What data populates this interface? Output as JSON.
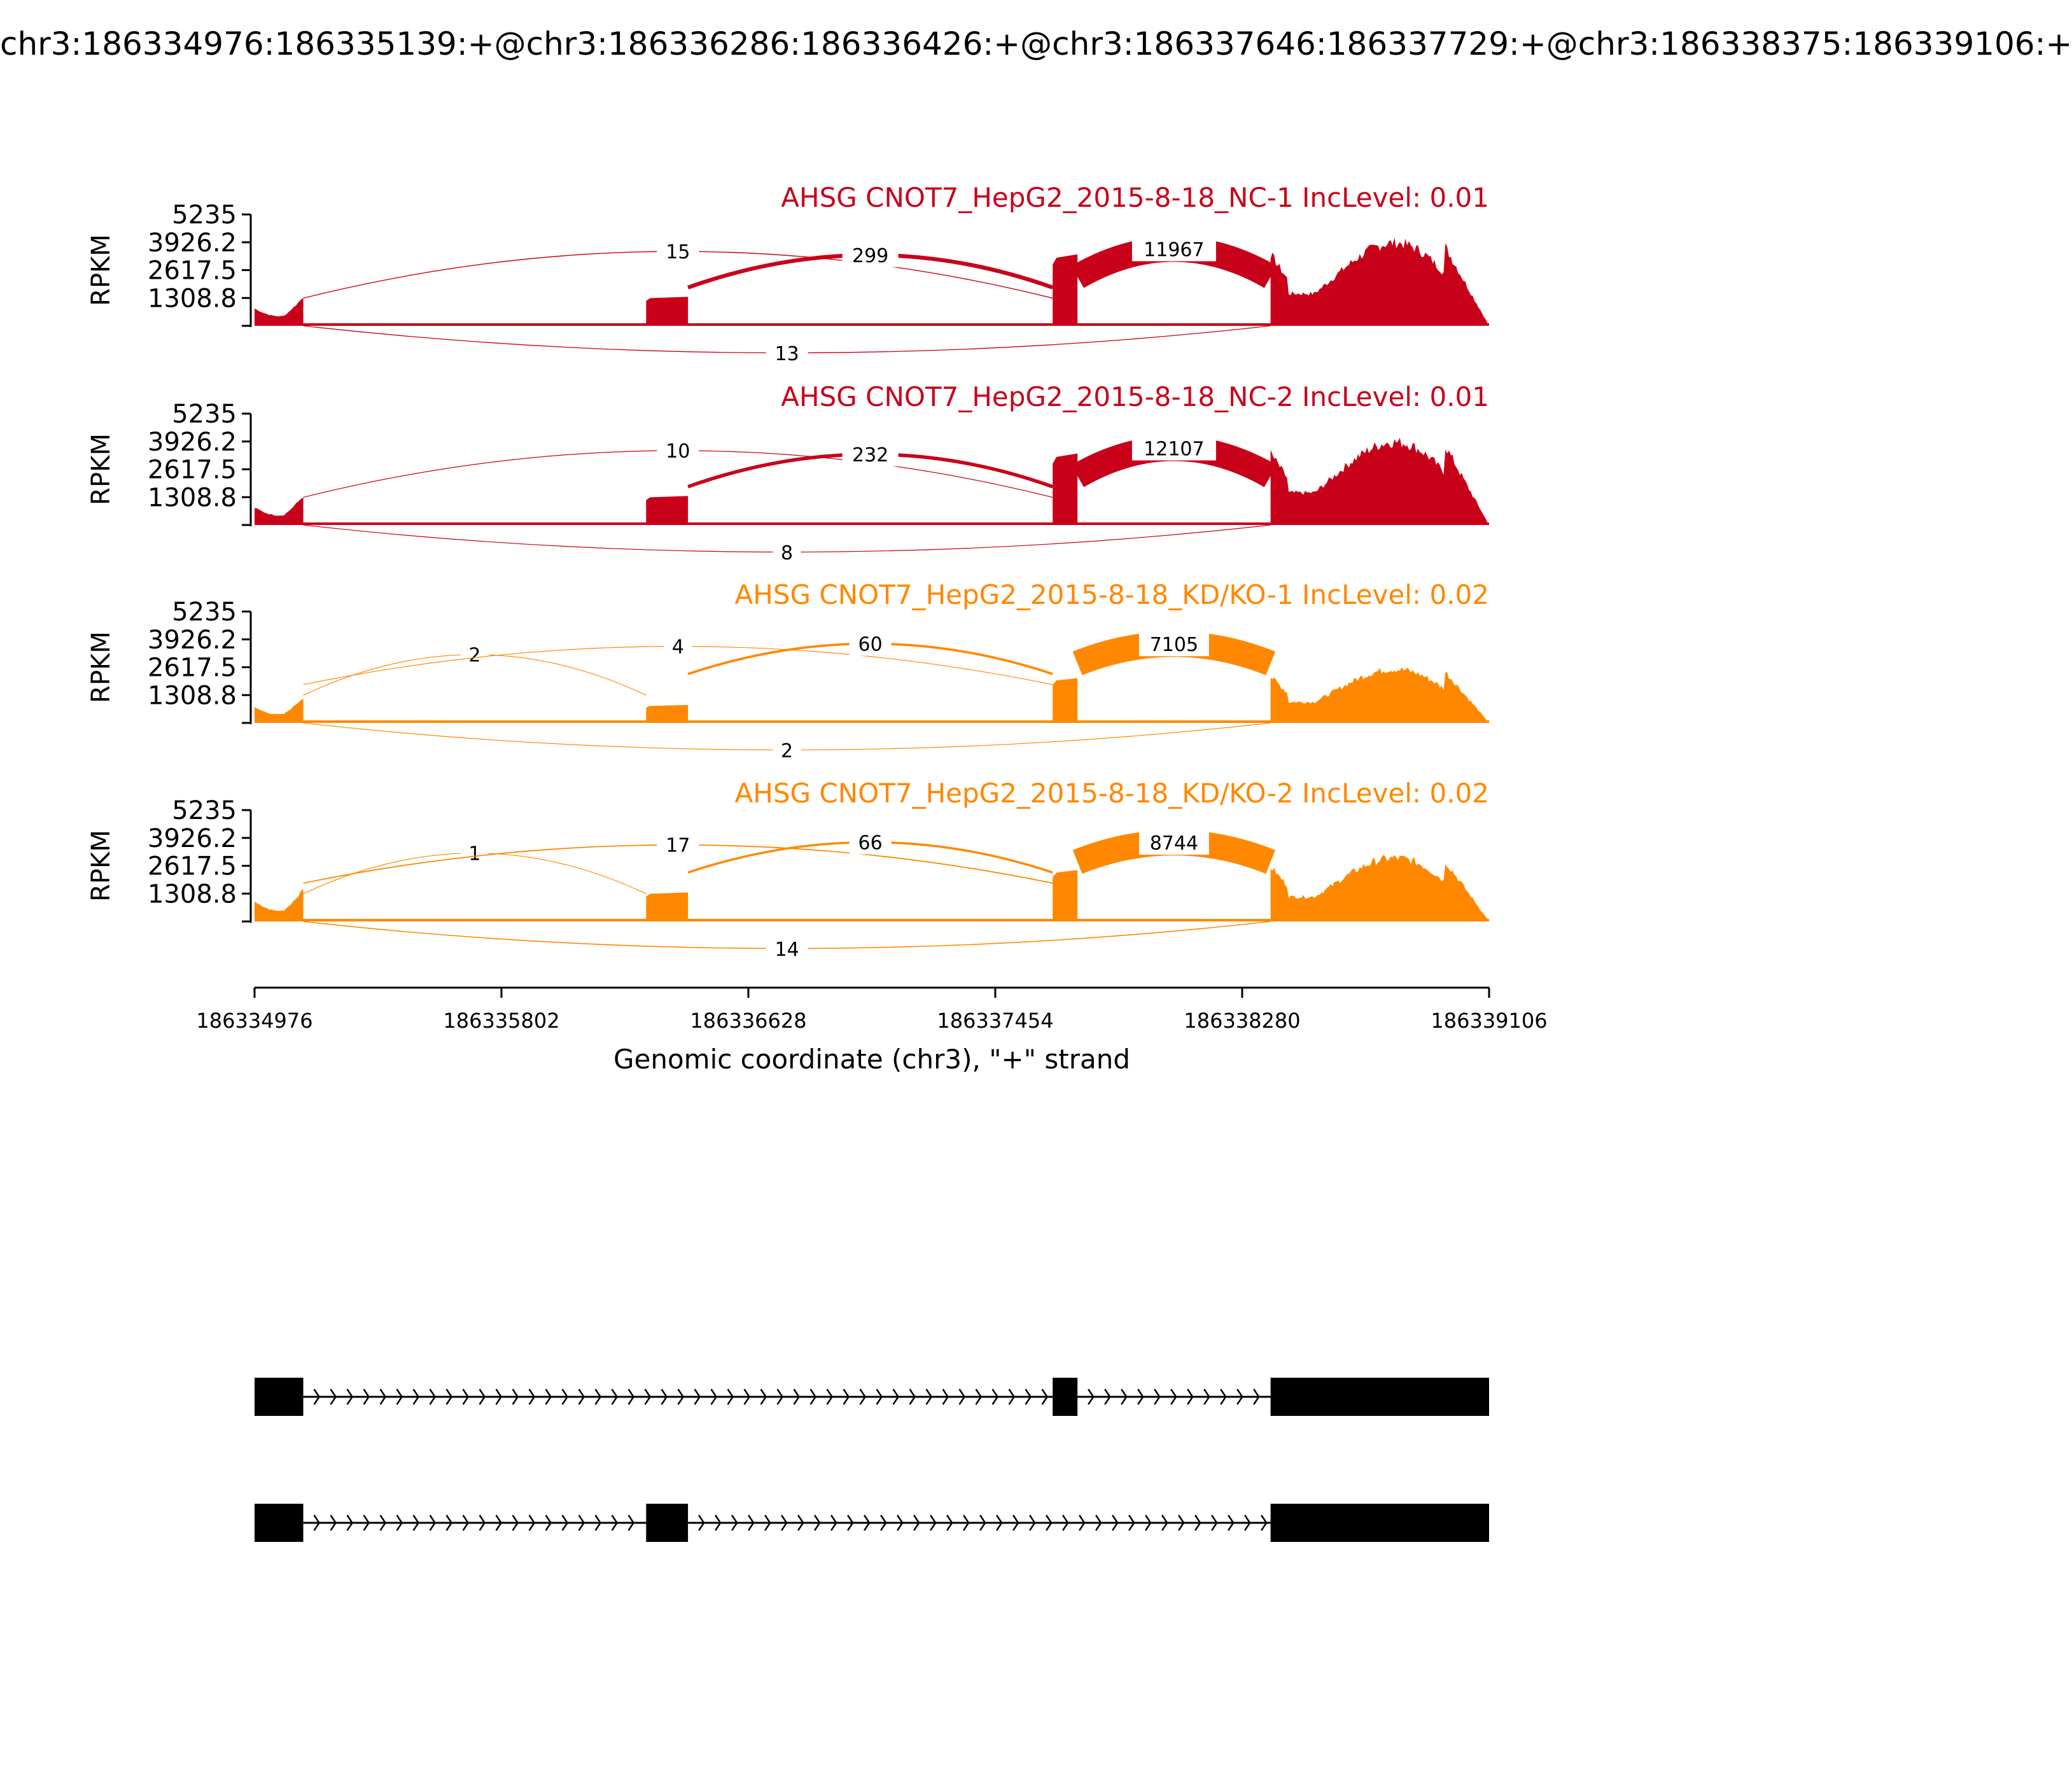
{
  "title": "chr3:186334976:186335139:+@chr3:186336286:186336426:+@chr3:186337646:186337729:+@chr3:186338375:186339106:+",
  "colors": {
    "nc": "#c9001a",
    "kd": "#ff8800",
    "axis": "#000000",
    "exon": "#000000"
  },
  "chart_data": {
    "type": "area",
    "ylabel": "RPKM",
    "xlabel": "Genomic coordinate (chr3), \"+\" strand",
    "xlim": [
      186334976,
      186339106
    ],
    "x_ticks": [
      "186334976",
      "186335802",
      "186336628",
      "186337454",
      "186338280",
      "186339106"
    ],
    "ylim": [
      0,
      5235
    ],
    "y_ticks": [
      "5235",
      "3926.2",
      "2617.5",
      "1308.8"
    ],
    "exons": [
      {
        "start": 186334976,
        "end": 186335139
      },
      {
        "start": 186336286,
        "end": 186336426
      },
      {
        "start": 186337646,
        "end": 186337729
      },
      {
        "start": 186338375,
        "end": 186339106
      }
    ],
    "panels": [
      {
        "label": "AHSG CNOT7_HepG2_2015-8-18_NC-1 IncLevel: 0.01",
        "color": "nc",
        "exon_levels": [
          900,
          1300,
          3200,
          3400
        ],
        "junctions": [
          {
            "from": 186335139,
            "to": 186337646,
            "count": "15",
            "side": "top"
          },
          {
            "from": 186336426,
            "to": 186337646,
            "count": "299",
            "side": "top"
          },
          {
            "from": 186337729,
            "to": 186338375,
            "count": "11967",
            "side": "top"
          },
          {
            "from": 186335139,
            "to": 186338375,
            "count": "13",
            "side": "bottom"
          }
        ]
      },
      {
        "label": "AHSG CNOT7_HepG2_2015-8-18_NC-2 IncLevel: 0.01",
        "color": "nc",
        "exon_levels": [
          900,
          1300,
          3200,
          3400
        ],
        "junctions": [
          {
            "from": 186335139,
            "to": 186337646,
            "count": "10",
            "side": "top"
          },
          {
            "from": 186336426,
            "to": 186337646,
            "count": "232",
            "side": "top"
          },
          {
            "from": 186337729,
            "to": 186338375,
            "count": "12107",
            "side": "top"
          },
          {
            "from": 186335139,
            "to": 186338375,
            "count": "8",
            "side": "bottom"
          }
        ]
      },
      {
        "label": "AHSG CNOT7_HepG2_2015-8-18_KD/KO-1 IncLevel: 0.02",
        "color": "kd",
        "exon_levels": [
          800,
          800,
          2000,
          2200
        ],
        "junctions": [
          {
            "from": 186335139,
            "to": 186336286,
            "count": "2",
            "side": "top"
          },
          {
            "from": 186335139,
            "to": 186337646,
            "count": "4",
            "side": "top"
          },
          {
            "from": 186336426,
            "to": 186337646,
            "count": "60",
            "side": "top"
          },
          {
            "from": 186337729,
            "to": 186338375,
            "count": "7105",
            "side": "top"
          },
          {
            "from": 186335139,
            "to": 186338375,
            "count": "2",
            "side": "bottom"
          }
        ]
      },
      {
        "label": "AHSG CNOT7_HepG2_2015-8-18_KD/KO-2 IncLevel: 0.02",
        "color": "kd",
        "exon_levels": [
          1000,
          1300,
          2300,
          2600
        ],
        "junctions": [
          {
            "from": 186335139,
            "to": 186336286,
            "count": "1",
            "side": "top"
          },
          {
            "from": 186335139,
            "to": 186337646,
            "count": "17",
            "side": "top"
          },
          {
            "from": 186336426,
            "to": 186337646,
            "count": "66",
            "side": "top"
          },
          {
            "from": 186337729,
            "to": 186338375,
            "count": "8744",
            "side": "top"
          },
          {
            "from": 186335139,
            "to": 186338375,
            "count": "14",
            "side": "bottom"
          }
        ]
      }
    ],
    "isoforms": [
      {
        "exons": [
          [
            186334976,
            186335139
          ],
          [
            186337646,
            186337729
          ],
          [
            186338375,
            186339106
          ]
        ]
      },
      {
        "exons": [
          [
            186334976,
            186335139
          ],
          [
            186336286,
            186336426
          ],
          [
            186338375,
            186339106
          ]
        ]
      }
    ]
  }
}
